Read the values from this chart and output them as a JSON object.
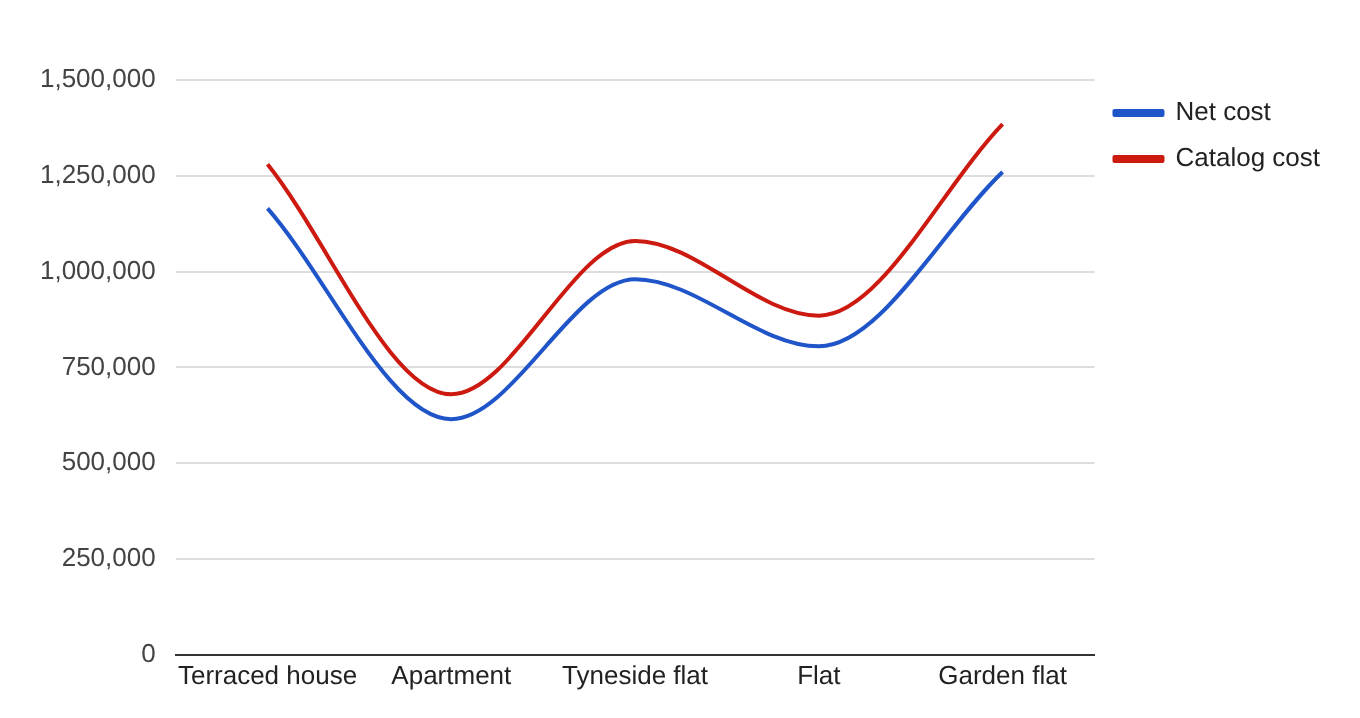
{
  "chart_data": {
    "type": "line",
    "categories": [
      "Terraced house",
      "Apartment",
      "Tyneside flat",
      "Flat",
      "Garden flat"
    ],
    "series": [
      {
        "name": "Net cost",
        "color": "#1f55c8",
        "values": [
          1165000,
          615000,
          980000,
          805000,
          1260000
        ]
      },
      {
        "name": "Catalog cost",
        "color": "#cc1a10",
        "values": [
          1280000,
          680000,
          1080000,
          885000,
          1385000
        ]
      }
    ],
    "ylim": [
      0,
      1500000
    ],
    "yticks": [
      0,
      {
        "value": 250000,
        "label": "250,000"
      },
      {
        "value": 500000,
        "label": "500,000"
      },
      {
        "value": 750000,
        "label": "750,000"
      },
      {
        "value": 1000000,
        "label": "1,000,000"
      },
      {
        "value": 1250000,
        "label": "1,250,000"
      },
      {
        "value": 1500000,
        "label": "1,500,000"
      }
    ],
    "grid": "y",
    "legend": "right",
    "marker": "none"
  }
}
